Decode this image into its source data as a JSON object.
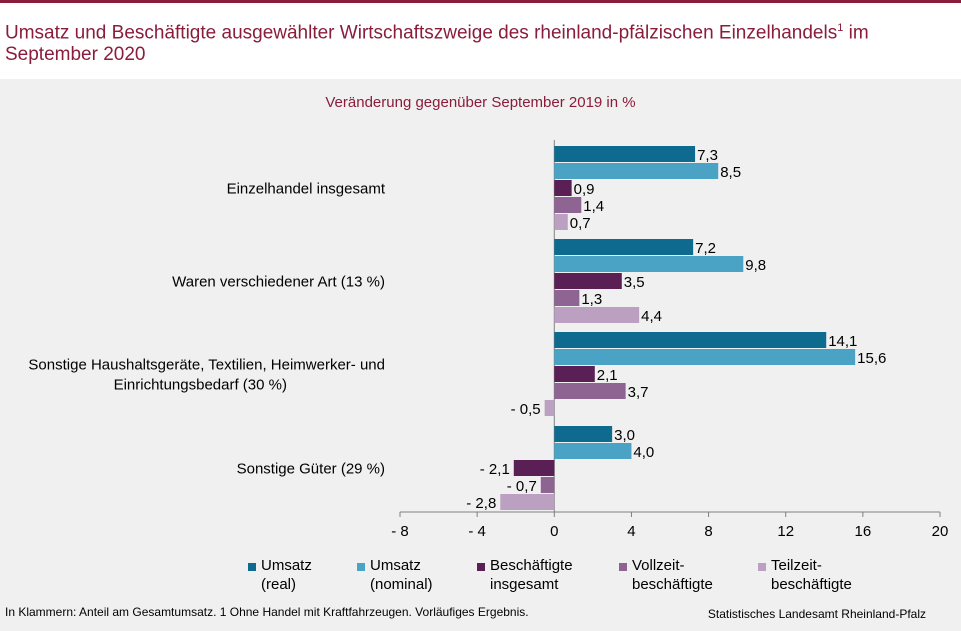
{
  "title_main": "Umsatz und Beschäftigte ausgewählter Wirtschaftszweige des rheinland-pfälzischen Einzelhandels",
  "title_sup": "1",
  "title_rest": " im September 2020",
  "subtitle": "Veränderung gegenüber September 2019 in %",
  "colors": [
    "#0f6a8f",
    "#4aa2c5",
    "#5a1f55",
    "#8e6492",
    "#bca0c2"
  ],
  "chart_data": {
    "type": "bar",
    "orientation": "horizontal",
    "categories": [
      [
        "Einzelhandel insgesamt"
      ],
      [
        "Waren verschiedener Art (13 %)"
      ],
      [
        "Sonstige Haushaltsgeräte, Textilien, Heimwerker- und",
        "Einrichtungsbedarf (30 %)"
      ],
      [
        "Sonstige Güter (29 %)"
      ]
    ],
    "series": [
      {
        "name": "Umsatz\n(real)",
        "values": [
          7.3,
          7.2,
          14.1,
          3.0
        ],
        "labels": [
          "7,3",
          "7,2",
          "14,1",
          "3,0"
        ]
      },
      {
        "name": "Umsatz\n(nominal)",
        "values": [
          8.5,
          9.8,
          15.6,
          4.0
        ],
        "labels": [
          "8,5",
          "9,8",
          "15,6",
          "4,0"
        ]
      },
      {
        "name": "Beschäftigte\ninsgesamt",
        "values": [
          0.9,
          3.5,
          2.1,
          -2.1
        ],
        "labels": [
          "0,9",
          "3,5",
          "2,1",
          "- 2,1"
        ]
      },
      {
        "name": "Vollzeit-\nbeschäftigte",
        "values": [
          1.4,
          1.3,
          3.7,
          -0.7
        ],
        "labels": [
          "1,4",
          "1,3",
          "3,7",
          "- 0,7"
        ]
      },
      {
        "name": "Teilzeit-\nbeschäftigte",
        "values": [
          0.7,
          4.4,
          -0.5,
          -2.8
        ],
        "labels": [
          "0,7",
          "4,4",
          "- 0,5",
          "- 2,8"
        ]
      }
    ],
    "xlim": [
      -8,
      20
    ],
    "xticks": [
      -8,
      -4,
      0,
      4,
      8,
      12,
      16,
      20
    ],
    "xtick_labels": [
      "- 8",
      "- 4",
      "0",
      "4",
      "8",
      "12",
      "16",
      "20"
    ]
  },
  "footnote": "In Klammern: Anteil am Gesamtumsatz. 1 Ohne Handel mit Kraftfahrzeugen. Vorläufiges Ergebnis.",
  "source": "Statistisches Landesamt Rheinland-Pfalz"
}
